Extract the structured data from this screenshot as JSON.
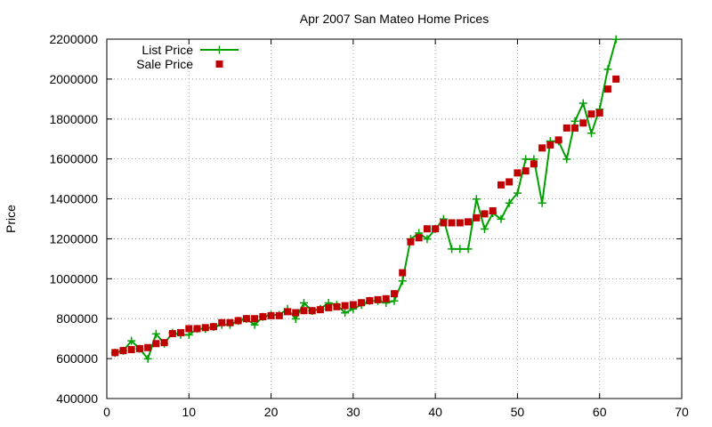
{
  "chart_data": {
    "type": "line",
    "title": "Apr 2007 San Mateo Home Prices",
    "xlabel": "",
    "ylabel": "Price",
    "xlim": [
      0,
      70
    ],
    "ylim": [
      400000,
      2200000
    ],
    "xticks": [
      0,
      10,
      20,
      30,
      40,
      50,
      60,
      70
    ],
    "yticks": [
      400000,
      600000,
      800000,
      1000000,
      1200000,
      1400000,
      1600000,
      1800000,
      2000000,
      2200000
    ],
    "grid": true,
    "legend_position": "top-left",
    "series": [
      {
        "name": "List Price",
        "style": "line-with-plus-markers",
        "color": "#00a000",
        "x": [
          1,
          2,
          3,
          4,
          5,
          6,
          7,
          8,
          9,
          10,
          11,
          12,
          13,
          14,
          15,
          16,
          17,
          18,
          19,
          20,
          21,
          22,
          23,
          24,
          25,
          26,
          27,
          28,
          29,
          30,
          31,
          32,
          33,
          34,
          35,
          36,
          37,
          38,
          39,
          40,
          41,
          42,
          43,
          44,
          45,
          46,
          47,
          48,
          49,
          50,
          51,
          52,
          53,
          54,
          55,
          56,
          57,
          58,
          59,
          60,
          61,
          62
        ],
        "y": [
          629000,
          639000,
          689000,
          649000,
          599000,
          724000,
          675000,
          729000,
          719000,
          719000,
          749000,
          749000,
          759000,
          769000,
          769000,
          789000,
          799000,
          769000,
          809000,
          819000,
          819000,
          849000,
          799000,
          879000,
          839000,
          849000,
          879000,
          869000,
          829000,
          849000,
          869000,
          889000,
          889000,
          879000,
          889000,
          989000,
          1199000,
          1229000,
          1199000,
          1249000,
          1299000,
          1149000,
          1149000,
          1149000,
          1399000,
          1249000,
          1329000,
          1299000,
          1379000,
          1429000,
          1599000,
          1599000,
          1379000,
          1689000,
          1689000,
          1599000,
          1789000,
          1879000,
          1729000,
          1849000,
          2049000,
          2199000
        ]
      },
      {
        "name": "Sale Price",
        "style": "square-markers",
        "color": "#c00000",
        "x": [
          1,
          2,
          3,
          4,
          5,
          6,
          7,
          8,
          9,
          10,
          11,
          12,
          13,
          14,
          15,
          16,
          17,
          18,
          19,
          20,
          21,
          22,
          23,
          24,
          25,
          26,
          27,
          28,
          29,
          30,
          31,
          32,
          33,
          34,
          35,
          36,
          37,
          38,
          39,
          40,
          41,
          42,
          43,
          44,
          45,
          46,
          47,
          48,
          49,
          50,
          51,
          52,
          53,
          54,
          55,
          56,
          57,
          58,
          59,
          60,
          61,
          62
        ],
        "y": [
          630000,
          640000,
          645000,
          650000,
          655000,
          675000,
          680000,
          725000,
          730000,
          750000,
          750000,
          755000,
          760000,
          780000,
          780000,
          790000,
          800000,
          800000,
          810000,
          815000,
          815000,
          835000,
          830000,
          840000,
          840000,
          845000,
          855000,
          860000,
          865000,
          870000,
          880000,
          890000,
          895000,
          900000,
          925000,
          1030000,
          1185000,
          1205000,
          1250000,
          1250000,
          1280000,
          1280000,
          1280000,
          1285000,
          1305000,
          1325000,
          1340000,
          1470000,
          1485000,
          1530000,
          1540000,
          1575000,
          1655000,
          1670000,
          1695000,
          1755000,
          1755000,
          1780000,
          1825000,
          1830000,
          1950000,
          2000000
        ]
      }
    ]
  }
}
